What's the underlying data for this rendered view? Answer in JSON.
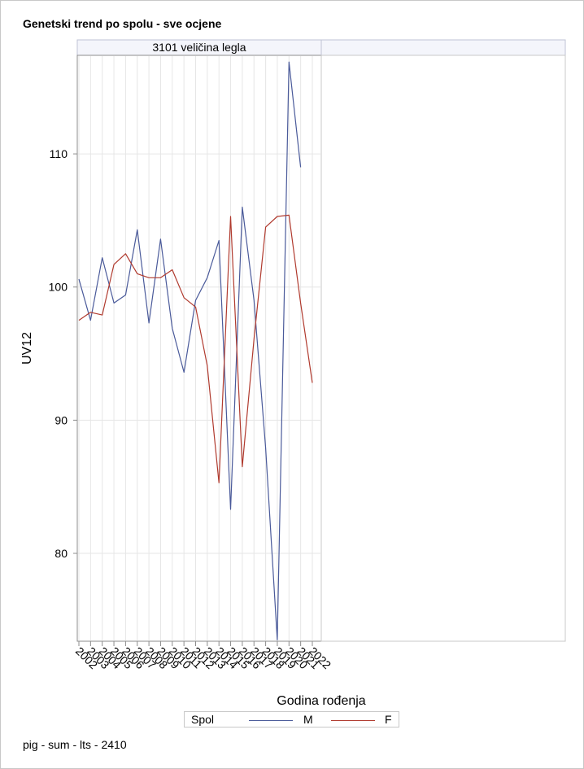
{
  "title": "Genetski trend po spolu - sve ocjene",
  "footnote": "pig - sum - lts - 2410",
  "colors": {
    "M": "#4a5a9a",
    "F": "#b03a2e",
    "grid": "#e6e6e6",
    "axis": "#8c8c8c",
    "header_bg": "#f4f5fb"
  },
  "chart_data": {
    "type": "line",
    "panel_header": "3101 veličina legla",
    "xlabel": "Godina rođenja",
    "ylabel": "UV12",
    "x": [
      "2002",
      "2003",
      "2004",
      "2005",
      "2006",
      "2007",
      "2008",
      "2009",
      "2010",
      "2011",
      "2012",
      "2013",
      "2014",
      "2015",
      "2016",
      "2017",
      "2018",
      "2019",
      "2020",
      "2021",
      "2022"
    ],
    "y_ticks": [
      80,
      90,
      100,
      110
    ],
    "ylim": [
      73.4,
      117.4
    ],
    "grid": true,
    "legend_title": "Spol",
    "series": [
      {
        "name": "M",
        "color": "#4a5a9a",
        "values": [
          100.6,
          97.5,
          102.2,
          98.8,
          99.4,
          104.3,
          97.3,
          103.6,
          96.9,
          93.6,
          99.0,
          100.7,
          103.5,
          83.3,
          106.0,
          99.0,
          87.9,
          73.5,
          116.9,
          109.0,
          null
        ]
      },
      {
        "name": "F",
        "color": "#b03a2e",
        "values": [
          97.5,
          98.1,
          97.9,
          101.7,
          102.5,
          101.0,
          100.7,
          100.7,
          101.3,
          99.2,
          98.5,
          94.1,
          85.3,
          105.3,
          86.5,
          96.1,
          104.5,
          105.3,
          105.4,
          98.8,
          92.8
        ]
      }
    ]
  }
}
